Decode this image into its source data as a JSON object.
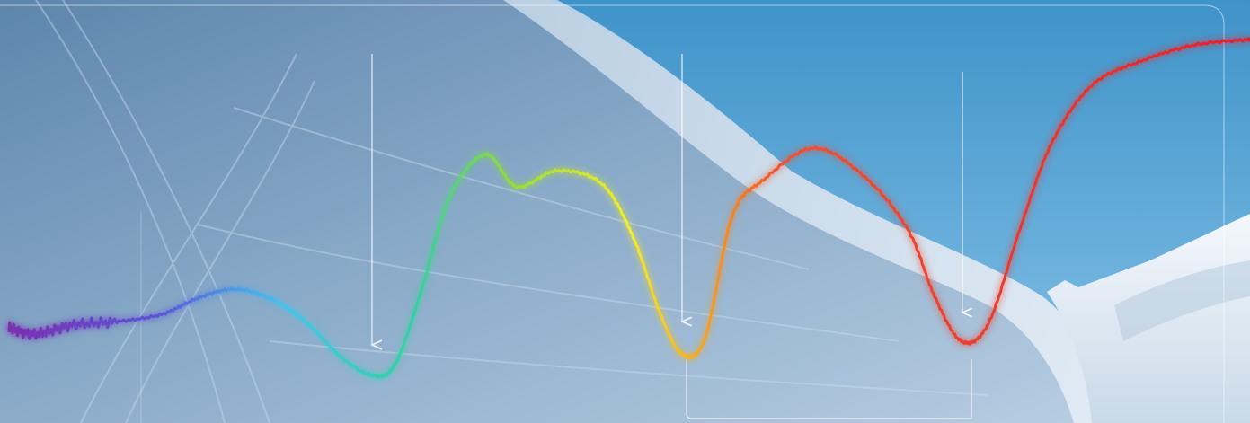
{
  "scene": {
    "description_free": true,
    "colors": {
      "sky_top": "#3f93c9",
      "sky_bottom": "#86c2e8",
      "snow_shadow": "#5d86ad",
      "snow_mid": "#9eb9d3",
      "snow_light": "#dde9f4",
      "snow_far": "#f4f8fc",
      "annotation_line": "#ffffff"
    },
    "icons": [
      "down-arrow-icon",
      "down-arrow-icon",
      "down-arrow-icon"
    ]
  },
  "spectrum_curve": {
    "gradient_stops": [
      "#7a2fb0",
      "#5a55d6",
      "#3fc6f0",
      "#2fd39a",
      "#8fdc3a",
      "#f6ee2a",
      "#f7a21f",
      "#f0522d",
      "#e81f2a"
    ]
  }
}
